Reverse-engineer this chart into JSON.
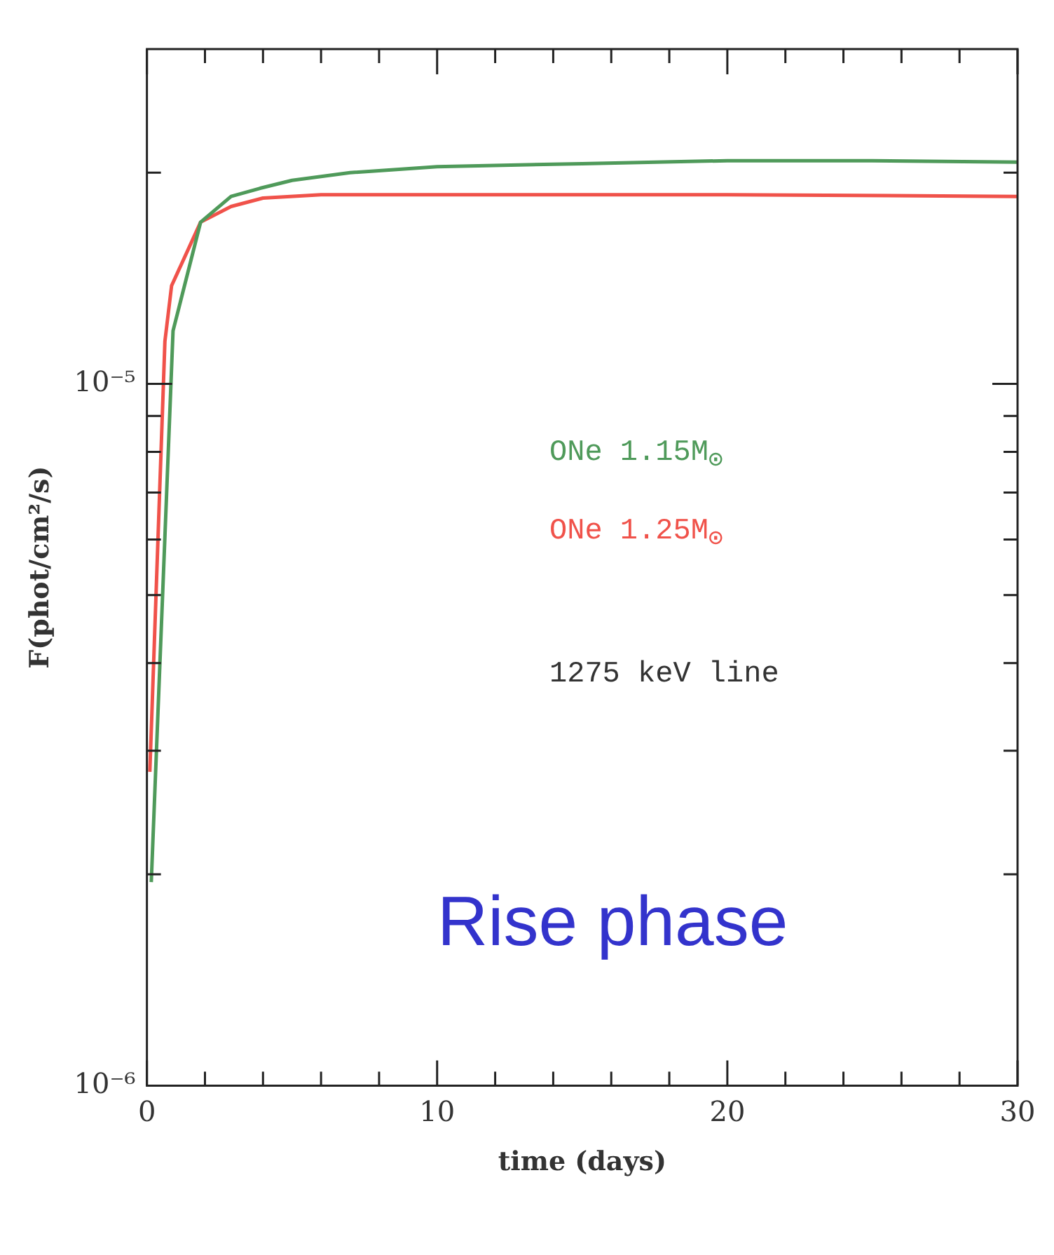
{
  "chart_data": {
    "type": "line",
    "xlabel": "time (days)",
    "ylabel": "F(phot/cm²/s)",
    "log": "y",
    "xlim": [
      0,
      30
    ],
    "xticks": [
      0,
      {
        "value": 2,
        "label": null
      },
      {
        "value": 4,
        "label": null
      },
      {
        "value": 6,
        "label": null
      },
      {
        "value": 8,
        "label": null
      },
      10,
      {
        "value": 12,
        "label": null
      },
      {
        "value": 14,
        "label": null
      },
      {
        "value": 16,
        "label": null
      },
      {
        "value": 18,
        "label": null
      },
      20,
      {
        "value": 22,
        "label": null
      },
      {
        "value": 24,
        "label": null
      },
      {
        "value": 26,
        "label": null
      },
      {
        "value": 28,
        "label": null
      },
      30
    ],
    "ylim": [
      1e-06,
      3e-05
    ],
    "yticks": [
      {
        "value": 1e-06,
        "label": "10⁻⁶"
      },
      {
        "value": 2e-06,
        "label": null
      },
      {
        "value": 3e-06,
        "label": null
      },
      {
        "value": 4e-06,
        "label": null
      },
      {
        "value": 5e-06,
        "label": null
      },
      {
        "value": 6e-06,
        "label": null
      },
      {
        "value": 7e-06,
        "label": null
      },
      {
        "value": 8e-06,
        "label": null
      },
      {
        "value": 9e-06,
        "label": null
      },
      {
        "value": 1e-05,
        "label": "10⁻⁵"
      },
      {
        "value": 2e-05,
        "label": null
      }
    ],
    "grid": false,
    "marker": "none",
    "line_style": "solid",
    "series": [
      {
        "name": "ONe 1.15M$_{⊙}$",
        "color": "#4f9a5a",
        "x": [
          0.15,
          0.9,
          1.85,
          2.9,
          3.9,
          5,
          7,
          10,
          15,
          20,
          25,
          30
        ],
        "values": [
          1.95e-06,
          1.19e-05,
          1.7e-05,
          1.85e-05,
          1.9e-05,
          1.95e-05,
          2e-05,
          2.04e-05,
          2.06e-05,
          2.08e-05,
          2.08e-05,
          2.07e-05
        ]
      },
      {
        "name": "ONe 1.25M$_{⊙}$",
        "color": "#f0524a",
        "x": [
          0.1,
          0.62,
          0.85,
          1.85,
          2.9,
          4,
          6,
          10,
          20,
          30
        ],
        "values": [
          2.8e-06,
          1.15e-05,
          1.38e-05,
          1.7e-05,
          1.79e-05,
          1.84e-05,
          1.86e-05,
          1.86e-05,
          1.86e-05,
          1.85e-05
        ]
      }
    ],
    "annotations": [
      "1275 keV line",
      "Rise phase"
    ]
  }
}
